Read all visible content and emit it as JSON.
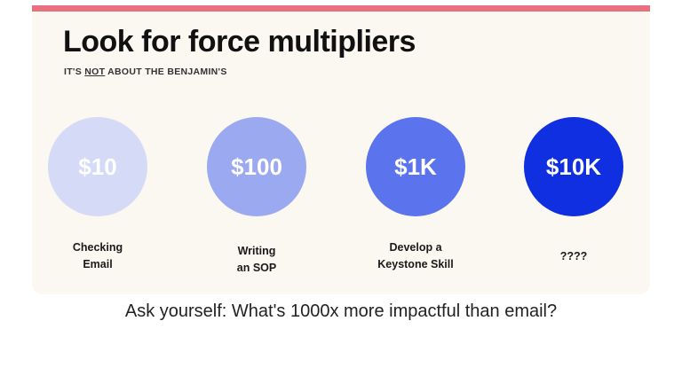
{
  "slide": {
    "title": "Look for force multipliers",
    "subtitle_before": "IT'S ",
    "subtitle_emphasis": "NOT",
    "subtitle_after": " ABOUT THE BENJAMIN'S",
    "accent_color": "#e8707f"
  },
  "tiers": [
    {
      "amount": "$10",
      "label_lines": [
        "Checking",
        "Email"
      ],
      "color": "#d5daf7"
    },
    {
      "amount": "$100",
      "label_lines": [
        "Writing",
        "an SOP"
      ],
      "color": "#9ba9f0"
    },
    {
      "amount": "$1K",
      "label_lines": [
        "Develop a",
        "Keystone Skill"
      ],
      "color": "#5b74ee"
    },
    {
      "amount": "$10K",
      "label_lines": [
        "????"
      ],
      "color": "#0f2fe0"
    }
  ],
  "footer": {
    "question": "Ask yourself: What's 1000x more impactful than email?"
  }
}
